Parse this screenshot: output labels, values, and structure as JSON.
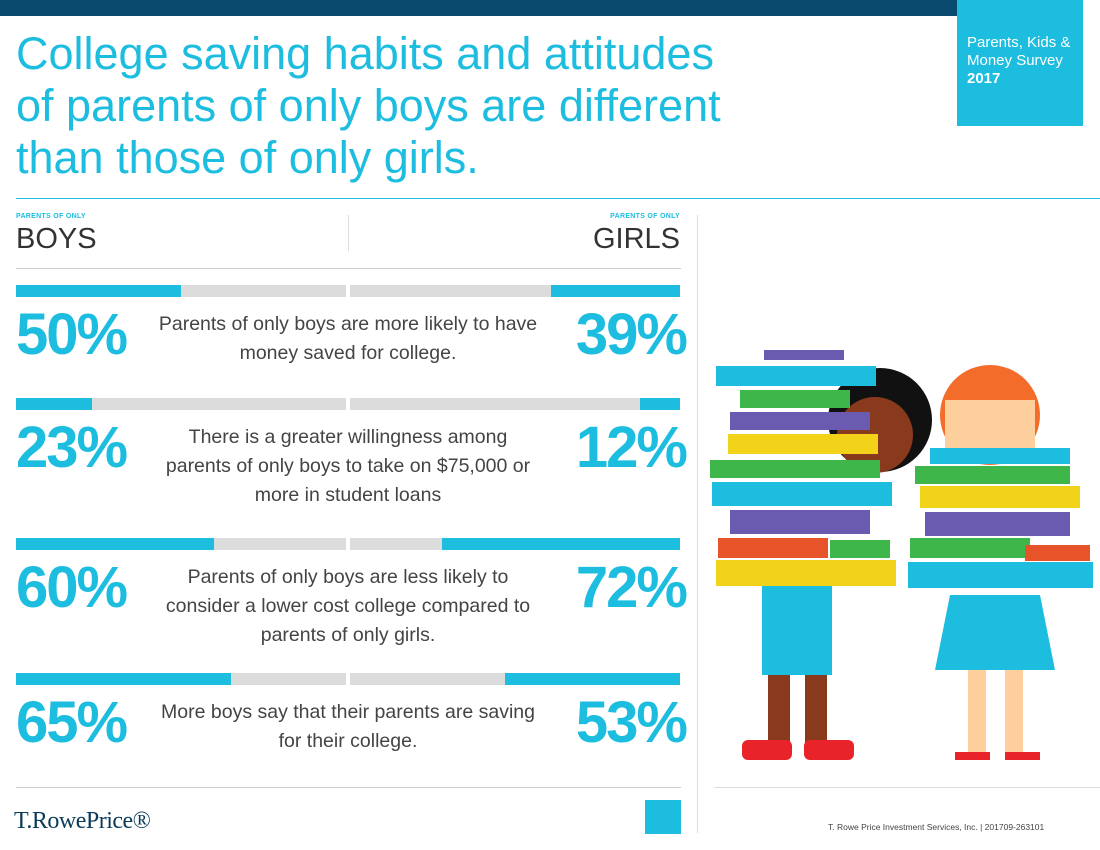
{
  "header": {
    "title": "College saving habits and attitudes of parents of only boys are different than those of only girls.",
    "badge_text": "Parents, Kids & Money Survey",
    "badge_year": "2017"
  },
  "columns": {
    "boys_kicker": "PARENTS OF ONLY",
    "boys": "BOYS",
    "girls_kicker": "PARENTS OF ONLY",
    "girls": "GIRLS"
  },
  "bars": {
    "xlim": [
      0,
      100
    ],
    "boys_color": "#1dbde0",
    "girls_color": "#1dbde0",
    "track_color": "#dcdcdc"
  },
  "stats": [
    {
      "boys": 50,
      "boys_label": "50%",
      "girls": 39,
      "girls_label": "39%",
      "text": "Parents of only boys are more likely to have money saved for college."
    },
    {
      "boys": 23,
      "boys_label": "23%",
      "girls": 12,
      "girls_label": "12%",
      "text": "There is a greater willingness among parents of only boys to take on $75,000 or more in student loans"
    },
    {
      "boys": 60,
      "boys_label": "60%",
      "girls": 72,
      "girls_label": "72%",
      "text": "Parents of only boys are less likely to consider a lower cost college compared to parents of only girls."
    },
    {
      "boys": 65,
      "boys_label": "65%",
      "girls": 53,
      "girls_label": "53%",
      "text": "More boys say that their parents are saving for their college."
    }
  ],
  "footer": {
    "logo": "T.RowePrice®",
    "note": "T. Rowe Price Investment Services, Inc. | 201709-263101"
  }
}
